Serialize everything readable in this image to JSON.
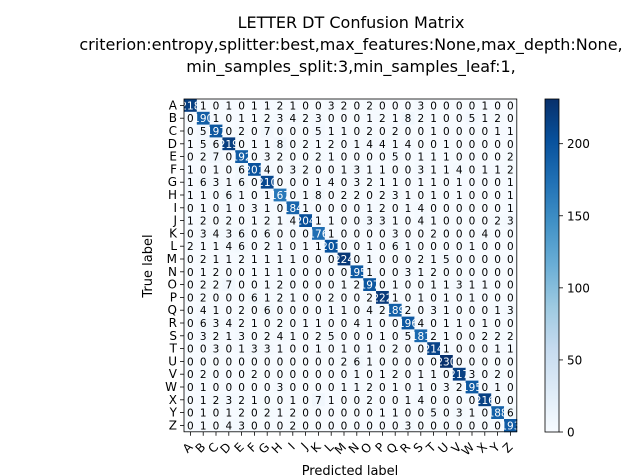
{
  "chart_data": {
    "type": "heatmap",
    "title": "LETTER DT Confusion Matrix",
    "subtitle_line1": "criterion:entropy,splitter:best,max_features:None,max_depth:None,",
    "subtitle_line2": "min_samples_split:3,min_samples_leaf:1,",
    "xlabel": "Predicted label",
    "ylabel": "True label",
    "labels": [
      "A",
      "B",
      "C",
      "D",
      "E",
      "F",
      "G",
      "H",
      "I",
      "J",
      "K",
      "L",
      "M",
      "N",
      "O",
      "P",
      "Q",
      "R",
      "S",
      "T",
      "U",
      "V",
      "W",
      "X",
      "Y",
      "Z"
    ],
    "matrix": [
      [
        218,
        1,
        0,
        1,
        0,
        1,
        1,
        2,
        1,
        0,
        0,
        3,
        2,
        0,
        2,
        0,
        0,
        0,
        3,
        0,
        0,
        0,
        0,
        1,
        0,
        0
      ],
      [
        0,
        190,
        1,
        0,
        1,
        1,
        2,
        3,
        4,
        2,
        3,
        0,
        0,
        0,
        1,
        2,
        1,
        8,
        2,
        1,
        0,
        0,
        5,
        1,
        2,
        0
      ],
      [
        0,
        5,
        197,
        0,
        2,
        0,
        7,
        0,
        0,
        0,
        5,
        1,
        1,
        0,
        2,
        0,
        2,
        0,
        0,
        1,
        0,
        0,
        0,
        0,
        1,
        1
      ],
      [
        1,
        5,
        6,
        219,
        0,
        1,
        1,
        8,
        0,
        2,
        1,
        2,
        0,
        1,
        4,
        4,
        1,
        4,
        0,
        0,
        1,
        0,
        0,
        0,
        0,
        0
      ],
      [
        0,
        2,
        7,
        0,
        192,
        0,
        3,
        2,
        0,
        0,
        2,
        1,
        0,
        0,
        0,
        0,
        5,
        0,
        1,
        1,
        1,
        0,
        0,
        0,
        0,
        2
      ],
      [
        1,
        0,
        1,
        0,
        6,
        201,
        4,
        0,
        3,
        2,
        0,
        0,
        1,
        3,
        1,
        1,
        0,
        0,
        3,
        1,
        1,
        4,
        0,
        1,
        1,
        2
      ],
      [
        1,
        6,
        3,
        1,
        6,
        0,
        210,
        0,
        0,
        0,
        1,
        4,
        0,
        3,
        2,
        1,
        1,
        0,
        1,
        1,
        0,
        1,
        0,
        0,
        0,
        1
      ],
      [
        1,
        1,
        0,
        6,
        1,
        0,
        1,
        167,
        0,
        1,
        8,
        0,
        2,
        2,
        0,
        2,
        3,
        1,
        0,
        1,
        0,
        1,
        0,
        0,
        0,
        1
      ],
      [
        0,
        1,
        0,
        1,
        0,
        3,
        1,
        0,
        184,
        1,
        0,
        0,
        0,
        0,
        1,
        2,
        0,
        1,
        4,
        0,
        0,
        0,
        0,
        0,
        0,
        1
      ],
      [
        1,
        2,
        0,
        2,
        0,
        1,
        2,
        1,
        4,
        204,
        1,
        1,
        0,
        0,
        3,
        3,
        1,
        0,
        4,
        1,
        0,
        0,
        0,
        0,
        2,
        3
      ],
      [
        0,
        3,
        4,
        3,
        6,
        0,
        6,
        0,
        0,
        0,
        176,
        1,
        0,
        0,
        0,
        0,
        3,
        0,
        0,
        2,
        0,
        0,
        0,
        4,
        0,
        0
      ],
      [
        2,
        1,
        1,
        4,
        6,
        0,
        2,
        1,
        0,
        1,
        1,
        201,
        0,
        0,
        1,
        0,
        6,
        1,
        0,
        0,
        0,
        0,
        1,
        0,
        0,
        0
      ],
      [
        0,
        2,
        1,
        1,
        2,
        1,
        1,
        1,
        1,
        0,
        0,
        0,
        224,
        0,
        1,
        0,
        0,
        0,
        2,
        1,
        5,
        0,
        0,
        0,
        0,
        0
      ],
      [
        0,
        1,
        2,
        0,
        0,
        1,
        1,
        1,
        0,
        0,
        0,
        0,
        0,
        195,
        1,
        0,
        0,
        3,
        1,
        2,
        0,
        0,
        0,
        0,
        0,
        0
      ],
      [
        0,
        2,
        2,
        7,
        0,
        0,
        1,
        2,
        0,
        0,
        0,
        0,
        1,
        2,
        197,
        0,
        1,
        0,
        0,
        1,
        1,
        3,
        1,
        1,
        0,
        0
      ],
      [
        0,
        2,
        0,
        0,
        0,
        6,
        1,
        2,
        1,
        0,
        0,
        2,
        0,
        0,
        2,
        222,
        1,
        0,
        1,
        0,
        1,
        0,
        1,
        0,
        0,
        0
      ],
      [
        0,
        4,
        1,
        0,
        2,
        0,
        6,
        0,
        0,
        0,
        0,
        1,
        1,
        0,
        4,
        2,
        189,
        2,
        0,
        3,
        1,
        0,
        0,
        0,
        1,
        3
      ],
      [
        0,
        6,
        3,
        4,
        2,
        1,
        0,
        2,
        0,
        1,
        1,
        0,
        0,
        4,
        1,
        0,
        0,
        196,
        4,
        0,
        1,
        1,
        0,
        1,
        0,
        0
      ],
      [
        0,
        3,
        2,
        1,
        3,
        0,
        2,
        4,
        1,
        0,
        2,
        5,
        0,
        0,
        0,
        1,
        0,
        5,
        181,
        2,
        1,
        0,
        0,
        2,
        2,
        2
      ],
      [
        0,
        0,
        3,
        0,
        1,
        3,
        3,
        1,
        0,
        0,
        1,
        0,
        1,
        0,
        1,
        0,
        2,
        0,
        0,
        214,
        1,
        0,
        0,
        0,
        1,
        1
      ],
      [
        0,
        0,
        0,
        0,
        0,
        0,
        0,
        0,
        0,
        0,
        0,
        0,
        2,
        6,
        1,
        0,
        0,
        0,
        0,
        0,
        230,
        0,
        0,
        0,
        0,
        0
      ],
      [
        0,
        2,
        0,
        0,
        0,
        2,
        0,
        0,
        0,
        0,
        0,
        0,
        0,
        1,
        0,
        1,
        2,
        0,
        1,
        1,
        0,
        217,
        3,
        0,
        2,
        0
      ],
      [
        0,
        1,
        0,
        0,
        0,
        0,
        0,
        3,
        0,
        0,
        0,
        0,
        1,
        1,
        2,
        0,
        1,
        0,
        1,
        0,
        3,
        2,
        195,
        0,
        1,
        0
      ],
      [
        0,
        1,
        2,
        3,
        2,
        1,
        0,
        0,
        1,
        0,
        7,
        1,
        0,
        0,
        2,
        0,
        0,
        1,
        4,
        0,
        0,
        0,
        0,
        216,
        0,
        0
      ],
      [
        0,
        1,
        0,
        1,
        2,
        0,
        2,
        1,
        2,
        0,
        0,
        0,
        0,
        0,
        0,
        1,
        1,
        0,
        0,
        5,
        0,
        3,
        1,
        0,
        188,
        6
      ],
      [
        0,
        1,
        0,
        4,
        3,
        0,
        0,
        0,
        2,
        0,
        0,
        0,
        0,
        0,
        0,
        0,
        0,
        3,
        0,
        0,
        0,
        0,
        0,
        0,
        0,
        193
      ]
    ],
    "colorbar": {
      "min": 0,
      "max": 231,
      "ticks": [
        0,
        50,
        100,
        150,
        200
      ]
    },
    "colormap": {
      "low": "#f7fbff",
      "high": "#08306b"
    }
  }
}
